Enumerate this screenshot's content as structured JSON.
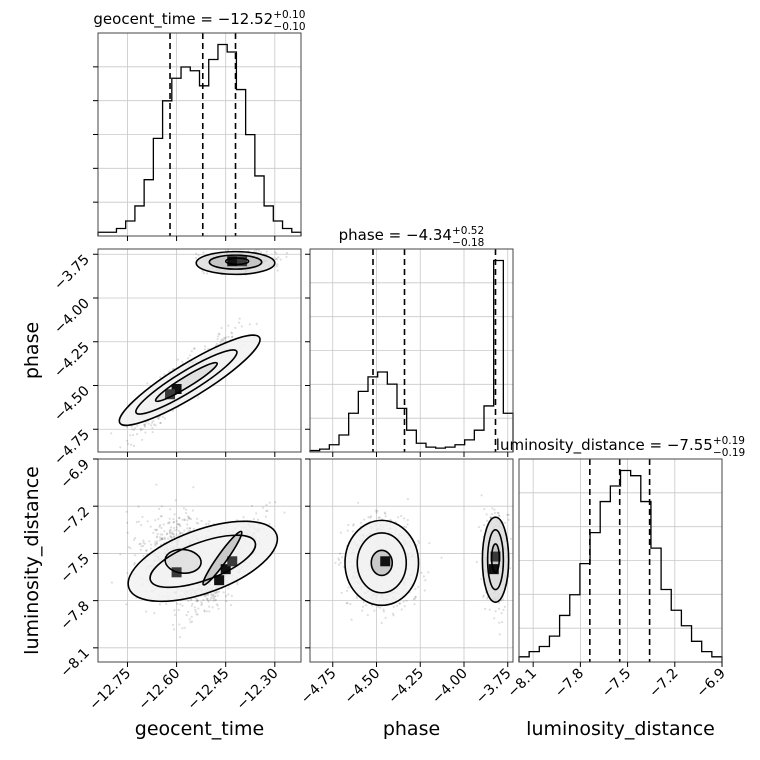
{
  "chart_data": {
    "type": "corner",
    "grid": true,
    "parameters": [
      {
        "name": "geocent_time",
        "range": [
          -12.84,
          -12.22
        ],
        "ticks": [
          -12.75,
          -12.6,
          -12.45,
          -12.3
        ],
        "tick_labels": [
          "−12.75",
          "−12.60",
          "−12.45",
          "−12.30"
        ],
        "median": -12.52,
        "quantiles": [
          -12.62,
          -12.52,
          -12.42
        ],
        "title": {
          "main": "geocent_time = −12.52",
          "plus": "+0.10",
          "minus": "−0.10"
        },
        "histogram": [
          1,
          1,
          2,
          4,
          8,
          15,
          26,
          36,
          42,
          45,
          44,
          40,
          47,
          51,
          49,
          39,
          27,
          16,
          8,
          4,
          2,
          1
        ]
      },
      {
        "name": "phase",
        "range": [
          -4.88,
          -3.72
        ],
        "ticks": [
          -4.75,
          -4.5,
          -4.25,
          -4.0,
          -3.75
        ],
        "tick_labels": [
          "−4.75",
          "−4.50",
          "−4.25",
          "−4.00",
          "−3.75"
        ],
        "median": -4.34,
        "quantiles": [
          -4.52,
          -4.34,
          -3.82
        ],
        "title": {
          "main": "phase = −4.34",
          "plus": "+0.52",
          "minus": "−0.18"
        },
        "histogram": [
          0.3,
          0.6,
          1.5,
          3.5,
          8,
          12.5,
          15.5,
          16.5,
          14,
          9,
          4.5,
          1.8,
          1,
          0.8,
          1,
          1.5,
          2.5,
          4.5,
          9.5,
          39.5,
          8
        ]
      },
      {
        "name": "luminosity_distance",
        "range": [
          -8.19,
          -6.9
        ],
        "ticks": [
          -8.1,
          -7.8,
          -7.5,
          -7.2,
          -6.9
        ],
        "tick_labels": [
          "−8.1",
          "−7.8",
          "−7.5",
          "−7.2",
          "−6.9"
        ],
        "median": -7.55,
        "quantiles": [
          -7.74,
          -7.55,
          -7.36
        ],
        "title": {
          "main": "luminosity_distance = −7.55",
          "plus": "+0.19",
          "minus": "−0.19"
        },
        "histogram": [
          1,
          2,
          3,
          5,
          9,
          13,
          19,
          25,
          31,
          34,
          37,
          36,
          31,
          22,
          14,
          10,
          7,
          4,
          2,
          1
        ]
      }
    ],
    "pairs": [
      {
        "x": "geocent_time",
        "y": "phase",
        "modes": [
          {
            "center": [
              -12.41,
              -3.79
            ],
            "sd": [
              0.05,
              0.03
            ],
            "rho": 0.1,
            "weight": 0.34
          },
          {
            "center": [
              -12.58,
              -4.49
            ],
            "sd": [
              0.07,
              0.12
            ],
            "rho": 0.9,
            "weight": 0.66
          }
        ],
        "contours": [
          {
            "center": [
              -12.415,
              -3.79
            ],
            "radius": [
              0.035,
              0.018
            ],
            "angle": 0
          },
          {
            "center": [
              -12.42,
              -3.795
            ],
            "radius": [
              0.08,
              0.04
            ],
            "angle": 0
          },
          {
            "center": [
              -12.42,
              -3.8
            ],
            "radius": [
              0.12,
              0.065
            ],
            "angle": 0
          },
          {
            "center": [
              -12.57,
              -4.48
            ],
            "radius": [
              0.11,
              0.03
            ],
            "angle": -0.55
          },
          {
            "center": [
              -12.57,
              -4.48
            ],
            "radius": [
              0.18,
              0.06
            ],
            "angle": -0.55
          },
          {
            "center": [
              -12.56,
              -4.47
            ],
            "radius": [
              0.25,
              0.095
            ],
            "angle": -0.55
          }
        ],
        "density_peaks": [
          [
            -12.43,
            -3.79
          ],
          [
            -12.4,
            -3.79
          ],
          [
            -12.6,
            -4.52
          ],
          [
            -12.62,
            -4.55
          ]
        ]
      },
      {
        "x": "geocent_time",
        "y": "luminosity_distance",
        "modes": [
          {
            "center": [
              -12.59,
              -7.55
            ],
            "sd": [
              0.06,
              0.14
            ],
            "rho": 0.0,
            "weight": 0.55
          },
          {
            "center": [
              -12.44,
              -7.55
            ],
            "sd": [
              0.05,
              0.14
            ],
            "rho": 0.85,
            "weight": 0.45
          }
        ],
        "contours": [
          {
            "center": [
              -12.46,
              -7.53
            ],
            "radius": [
              0.1,
              0.03
            ],
            "angle": -0.95
          },
          {
            "center": [
              -12.58,
              -7.55
            ],
            "radius": [
              0.055,
              0.075
            ],
            "angle": 0.1
          },
          {
            "center": [
              -12.52,
              -7.55
            ],
            "radius": [
              0.17,
              0.12
            ],
            "angle": -0.35
          },
          {
            "center": [
              -12.52,
              -7.55
            ],
            "radius": [
              0.24,
              0.2
            ],
            "angle": -0.35
          }
        ],
        "density_peaks": [
          [
            -12.45,
            -7.6
          ],
          [
            -12.43,
            -7.55
          ],
          [
            -12.47,
            -7.67
          ],
          [
            -12.6,
            -7.62
          ]
        ]
      },
      {
        "x": "phase",
        "y": "luminosity_distance",
        "modes": [
          {
            "center": [
              -4.47,
              -7.56
            ],
            "sd": [
              0.09,
              0.13
            ],
            "rho": 0.0,
            "weight": 0.78
          },
          {
            "center": [
              -3.82,
              -7.54
            ],
            "sd": [
              0.035,
              0.15
            ],
            "rho": 0.0,
            "weight": 0.22
          }
        ],
        "contours": [
          {
            "center": [
              -4.47,
              -7.56
            ],
            "radius": [
              0.06,
              0.08
            ],
            "angle": 0
          },
          {
            "center": [
              -4.47,
              -7.56
            ],
            "radius": [
              0.14,
              0.19
            ],
            "angle": 0
          },
          {
            "center": [
              -4.47,
              -7.56
            ],
            "radius": [
              0.21,
              0.27
            ],
            "angle": 0
          },
          {
            "center": [
              -3.82,
              -7.53
            ],
            "radius": [
              0.022,
              0.09
            ],
            "angle": 0
          },
          {
            "center": [
              -3.82,
              -7.54
            ],
            "radius": [
              0.045,
              0.19
            ],
            "angle": 0
          },
          {
            "center": [
              -3.82,
              -7.54
            ],
            "radius": [
              0.075,
              0.27
            ],
            "angle": 0
          }
        ],
        "density_peaks": [
          [
            -4.45,
            -7.55
          ],
          [
            -3.82,
            -7.52
          ],
          [
            -3.83,
            -7.6
          ]
        ]
      }
    ]
  }
}
